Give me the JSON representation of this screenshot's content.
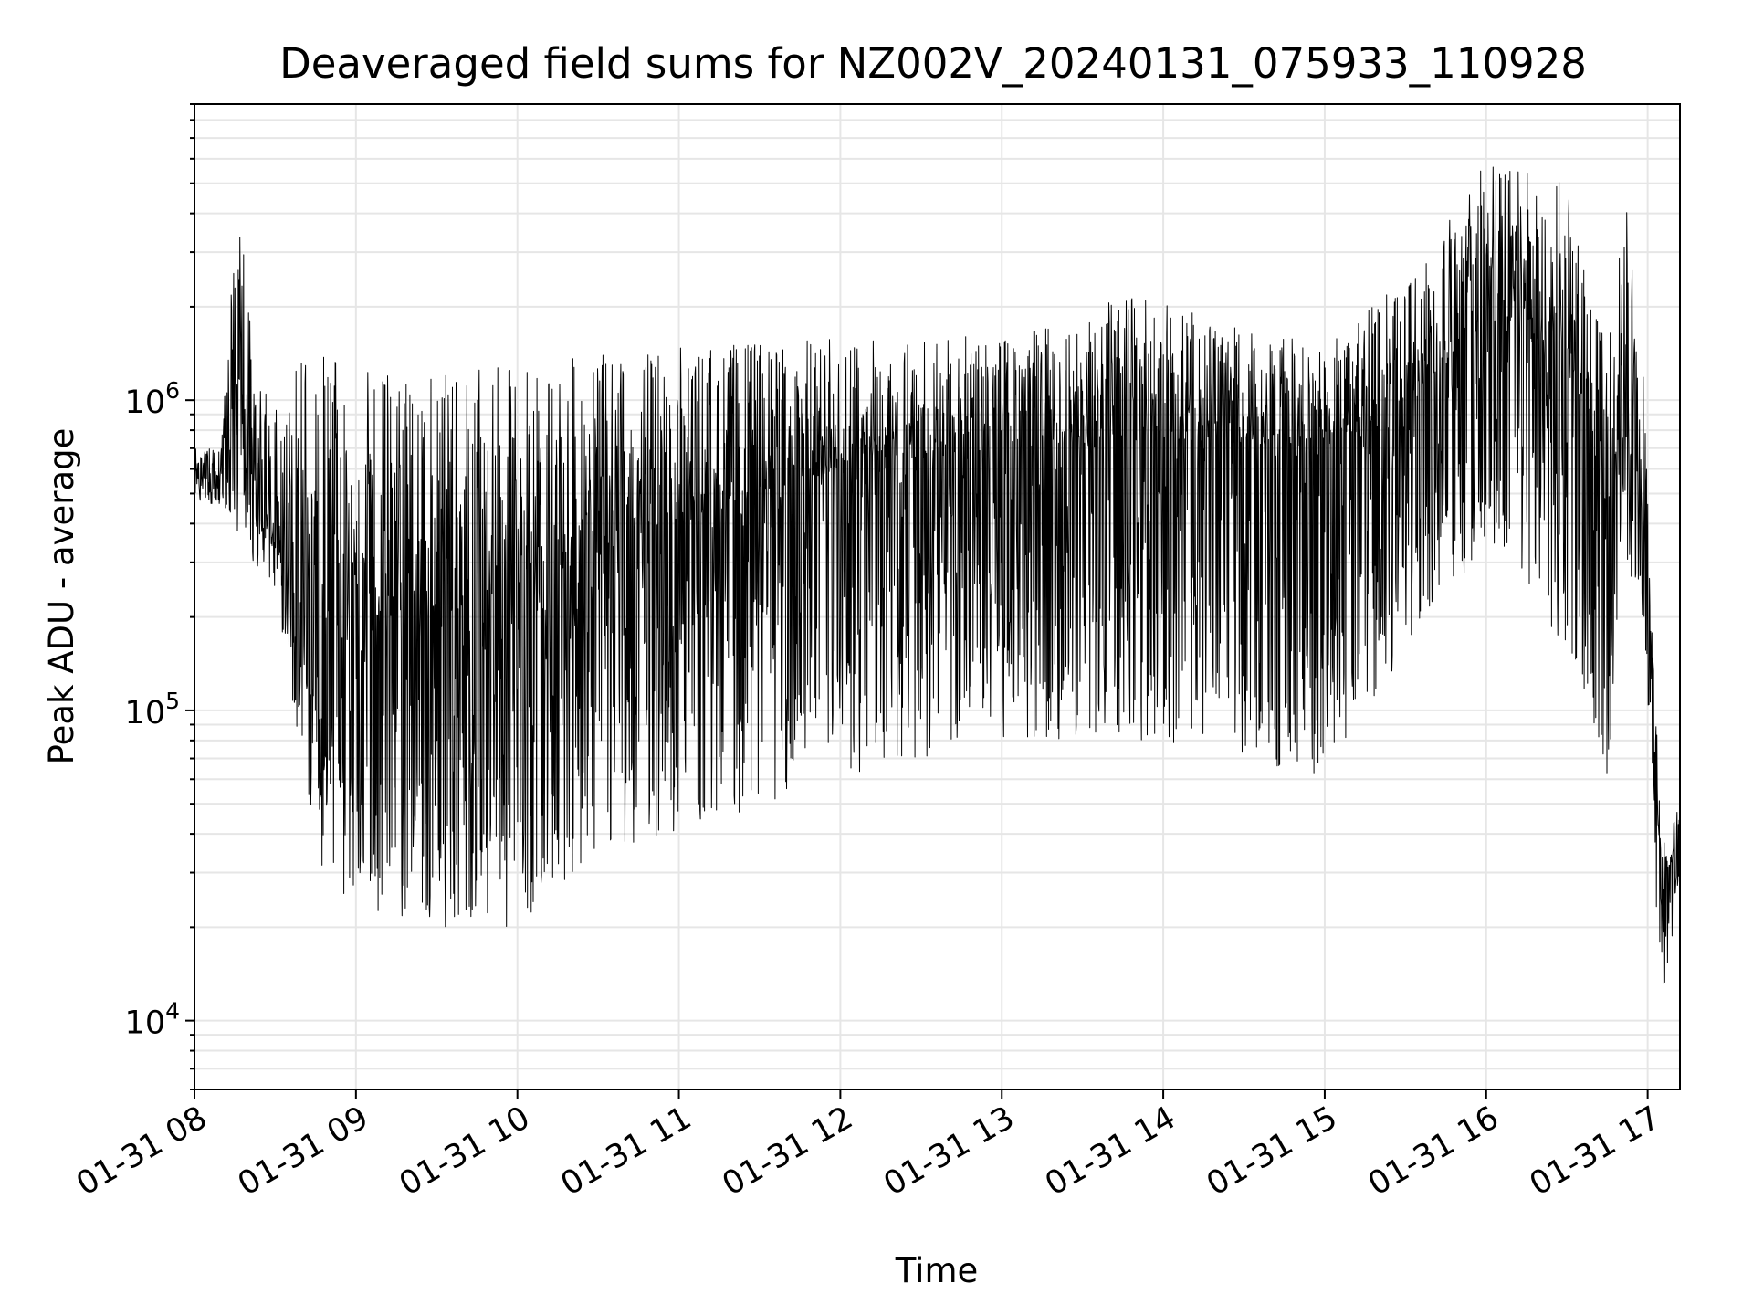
{
  "chart_data": {
    "type": "line",
    "title": "Deaveraged field sums for NZ002V_20240131_075933_110928",
    "xlabel": "Time",
    "ylabel": "Peak ADU - average",
    "xlim": [
      "2024-01-31 08:00",
      "2024-01-31 17:12"
    ],
    "ylim": [
      6000,
      9000000
    ],
    "yscale": "log",
    "grid": "on (major and minor)",
    "line_color": "#000000",
    "x_tick_labels": [
      "01-31 08",
      "01-31 09",
      "01-31 10",
      "01-31 11",
      "01-31 12",
      "01-31 13",
      "01-31 14",
      "01-31 15",
      "01-31 16",
      "01-31 17"
    ],
    "y_tick_labels": [
      {
        "value": 10000,
        "base": "10",
        "exp": "4"
      },
      {
        "value": 100000,
        "base": "10",
        "exp": "5"
      },
      {
        "value": 1000000,
        "base": "10",
        "exp": "6"
      }
    ],
    "series": [
      {
        "upper_envelope": [
          [
            "2024-01-31 08:00",
            700000
          ],
          [
            "2024-01-31 08:10",
            700000
          ],
          [
            "2024-01-31 08:13",
            2200000
          ],
          [
            "2024-01-31 08:17",
            5500000
          ],
          [
            "2024-01-31 08:22",
            1200000
          ],
          [
            "2024-01-31 08:30",
            1000000
          ],
          [
            "2024-01-31 08:40",
            1500000
          ],
          [
            "2024-01-31 09:00",
            1300000
          ],
          [
            "2024-01-31 09:30",
            1200000
          ],
          [
            "2024-01-31 10:00",
            1300000
          ],
          [
            "2024-01-31 11:00",
            1500000
          ],
          [
            "2024-01-31 12:00",
            1600000
          ],
          [
            "2024-01-31 13:00",
            1600000
          ],
          [
            "2024-01-31 13:50",
            2200000
          ],
          [
            "2024-01-31 14:30",
            1700000
          ],
          [
            "2024-01-31 15:00",
            1500000
          ],
          [
            "2024-01-31 15:30",
            2500000
          ],
          [
            "2024-01-31 16:00",
            6000000
          ],
          [
            "2024-01-31 16:30",
            5000000
          ],
          [
            "2024-01-31 16:45",
            1500000
          ],
          [
            "2024-01-31 16:52",
            5000000
          ],
          [
            "2024-01-31 16:58",
            1500000
          ],
          [
            "2024-01-31 17:01",
            300000
          ],
          [
            "2024-01-31 17:05",
            40000
          ],
          [
            "2024-01-31 17:12",
            50000
          ]
        ],
        "center_line": [
          [
            "2024-01-31 08:00",
            550000
          ],
          [
            "2024-01-31 08:10",
            560000
          ],
          [
            "2024-01-31 08:17",
            1200000
          ],
          [
            "2024-01-31 08:22",
            500000
          ],
          [
            "2024-01-31 08:30",
            350000
          ],
          [
            "2024-01-31 08:40",
            250000
          ],
          [
            "2024-01-31 09:00",
            200000
          ],
          [
            "2024-01-31 09:30",
            200000
          ],
          [
            "2024-01-31 10:00",
            250000
          ],
          [
            "2024-01-31 11:00",
            400000
          ],
          [
            "2024-01-31 12:00",
            600000
          ],
          [
            "2024-01-31 13:00",
            700000
          ],
          [
            "2024-01-31 14:00",
            750000
          ],
          [
            "2024-01-31 15:00",
            700000
          ],
          [
            "2024-01-31 15:30",
            1000000
          ],
          [
            "2024-01-31 16:00",
            1700000
          ],
          [
            "2024-01-31 16:30",
            1500000
          ],
          [
            "2024-01-31 16:45",
            450000
          ],
          [
            "2024-01-31 16:52",
            1100000
          ],
          [
            "2024-01-31 16:58",
            600000
          ],
          [
            "2024-01-31 17:01",
            150000
          ],
          [
            "2024-01-31 17:05",
            25000
          ],
          [
            "2024-01-31 17:12",
            40000
          ]
        ],
        "lower_envelope": [
          [
            "2024-01-31 08:00",
            480000
          ],
          [
            "2024-01-31 08:10",
            450000
          ],
          [
            "2024-01-31 08:22",
            300000
          ],
          [
            "2024-01-31 08:30",
            250000
          ],
          [
            "2024-01-31 08:40",
            60000
          ],
          [
            "2024-01-31 08:50",
            25000
          ],
          [
            "2024-01-31 09:30",
            20000
          ],
          [
            "2024-01-31 10:00",
            20000
          ],
          [
            "2024-01-31 10:30",
            35000
          ],
          [
            "2024-01-31 11:00",
            40000
          ],
          [
            "2024-01-31 12:00",
            60000
          ],
          [
            "2024-01-31 13:00",
            80000
          ],
          [
            "2024-01-31 14:00",
            80000
          ],
          [
            "2024-01-31 15:00",
            60000
          ],
          [
            "2024-01-31 15:30",
            150000
          ],
          [
            "2024-01-31 16:00",
            300000
          ],
          [
            "2024-01-31 16:30",
            150000
          ],
          [
            "2024-01-31 16:45",
            60000
          ],
          [
            "2024-01-31 16:52",
            300000
          ],
          [
            "2024-01-31 16:58",
            200000
          ],
          [
            "2024-01-31 17:01",
            70000
          ],
          [
            "2024-01-31 17:05",
            9000
          ],
          [
            "2024-01-31 17:12",
            30000
          ]
        ]
      }
    ]
  }
}
